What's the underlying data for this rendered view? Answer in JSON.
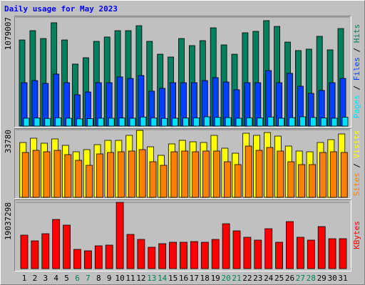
{
  "title": "Daily usage for May 2023",
  "categories": [
    "1",
    "2",
    "3",
    "4",
    "5",
    "6",
    "7",
    "8",
    "9",
    "10",
    "11",
    "12",
    "13",
    "14",
    "15",
    "16",
    "17",
    "18",
    "19",
    "20",
    "21",
    "22",
    "23",
    "24",
    "25",
    "26",
    "27",
    "28",
    "29",
    "30",
    "31"
  ],
  "category_colors": [
    "#000000",
    "#000000",
    "#000000",
    "#000000",
    "#000000",
    "#00805c",
    "#00805c",
    "#000000",
    "#000000",
    "#000000",
    "#000000",
    "#000000",
    "#00805c",
    "#00805c",
    "#000000",
    "#000000",
    "#000000",
    "#000000",
    "#000000",
    "#00805c",
    "#00805c",
    "#000000",
    "#000000",
    "#000000",
    "#000000",
    "#000000",
    "#00805c",
    "#00805c",
    "#000000",
    "#000000",
    "#000000"
  ],
  "legend_separator": " / ",
  "chart_data": [
    {
      "type": "bar",
      "ylim": [
        0,
        1079007
      ],
      "yticks": [
        1079007
      ],
      "grid": true,
      "series": [
        {
          "name": "Hits",
          "color": "#00805c",
          "values": [
            853000,
            945000,
            867000,
            1023000,
            853000,
            614000,
            677000,
            839000,
            882000,
            945000,
            945000,
            994000,
            839000,
            712000,
            684000,
            867000,
            797000,
            846000,
            973000,
            804000,
            712000,
            924000,
            938000,
            1044000,
            987000,
            832000,
            748000,
            762000,
            889000,
            755000,
            966000
          ]
        },
        {
          "name": "Files",
          "color": "#0040ff",
          "values": [
            430000,
            451000,
            423000,
            515000,
            430000,
            310000,
            338000,
            430000,
            430000,
            487000,
            472000,
            501000,
            346000,
            374000,
            430000,
            430000,
            430000,
            451000,
            480000,
            437000,
            360000,
            430000,
            430000,
            550000,
            430000,
            522000,
            395000,
            324000,
            353000,
            430000,
            472000
          ]
        },
        {
          "name": "Pages",
          "color": "#00e0ff",
          "values": [
            78000,
            80000,
            76000,
            82000,
            78000,
            72000,
            74000,
            78000,
            78000,
            80000,
            78000,
            90000,
            80000,
            76000,
            78000,
            80000,
            82000,
            92000,
            86000,
            84000,
            78000,
            82000,
            80000,
            90000,
            78000,
            84000,
            92000,
            86000,
            80000,
            78000,
            88000
          ]
        }
      ]
    },
    {
      "type": "bar",
      "ylim": [
        0,
        33780
      ],
      "yticks": [
        33780
      ],
      "grid": true,
      "series": [
        {
          "name": "Visits",
          "color": "#ffff00",
          "values": [
            27381,
            29515,
            27026,
            29159,
            25959,
            22758,
            23825,
            26314,
            28448,
            28448,
            30937,
            33426,
            25248,
            20980,
            26670,
            28448,
            27737,
            27381,
            30937,
            24536,
            22047,
            32004,
            30937,
            32360,
            30582,
            25603,
            23114,
            22758,
            27381,
            28804,
            31648
          ]
        },
        {
          "name": "Sites",
          "color": "#ff8000",
          "values": [
            22403,
            23470,
            22758,
            23470,
            21336,
            18491,
            16002,
            21692,
            22403,
            22758,
            23114,
            23825,
            17780,
            16002,
            22758,
            23114,
            22758,
            23114,
            23114,
            17780,
            16358,
            25603,
            23470,
            24892,
            23114,
            17780,
            16358,
            16358,
            22403,
            22758,
            22403
          ]
        }
      ]
    },
    {
      "type": "bar",
      "ylim": [
        0,
        19037298
      ],
      "yticks": [
        19037298
      ],
      "grid": true,
      "series": [
        {
          "name": "KBytes",
          "color": "#ff0000",
          "values": [
            9621000,
            7983000,
            10030000,
            14124000,
            12487000,
            5527000,
            5118000,
            6550000,
            6755000,
            19037298,
            9826000,
            8393000,
            6141000,
            7165000,
            7574000,
            7574000,
            7779000,
            7574000,
            8393000,
            12896000,
            10849000,
            9007000,
            8188000,
            11463000,
            7574000,
            13510000,
            9007000,
            8188000,
            12077000,
            8597000,
            8597000
          ]
        }
      ]
    }
  ]
}
